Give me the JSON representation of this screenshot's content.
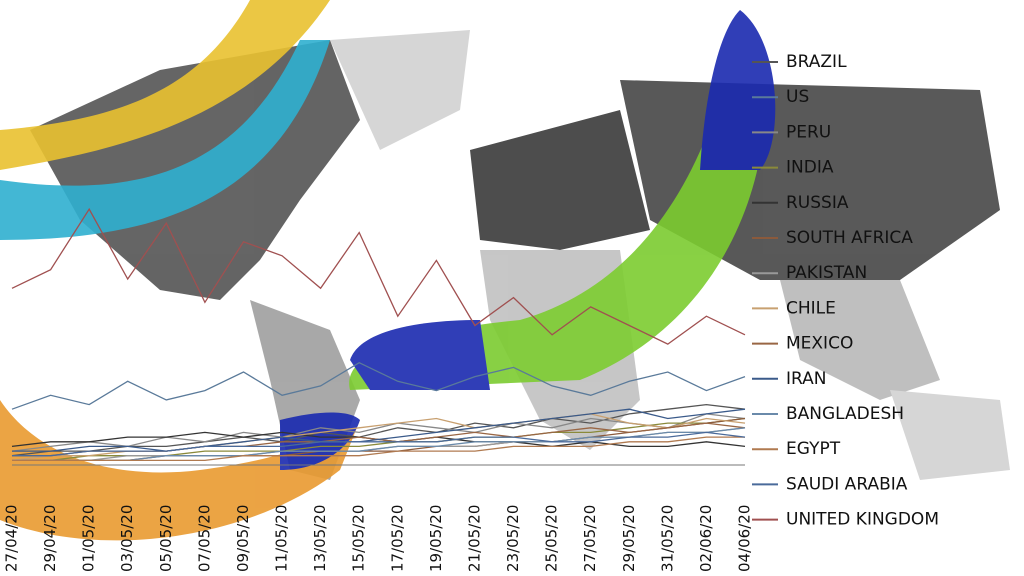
{
  "chart_data": {
    "type": "line",
    "categories": [
      "27/04/20",
      "29/04/20",
      "01/05/20",
      "03/05/20",
      "05/05/20",
      "07/05/20",
      "09/05/20",
      "11/05/20",
      "13/05/20",
      "15/05/20",
      "17/05/20",
      "19/05/20",
      "21/05/20",
      "23/05/20",
      "25/05/20",
      "27/05/20",
      "29/05/20",
      "31/05/20",
      "02/06/20",
      "04/06/20"
    ],
    "ylim": [
      0,
      100
    ],
    "series": [
      {
        "name": "BRAZIL",
        "color": "#555555",
        "values": [
          2,
          3,
          3,
          4,
          4,
          5,
          6,
          5,
          7,
          6,
          8,
          7,
          9,
          8,
          10,
          9,
          11,
          12,
          13,
          12
        ]
      },
      {
        "name": "US",
        "color": "#5a7a9a",
        "values": [
          12,
          15,
          13,
          18,
          14,
          16,
          20,
          15,
          17,
          22,
          18,
          16,
          19,
          21,
          17,
          15,
          18,
          20,
          16,
          19
        ]
      },
      {
        "name": "PERU",
        "color": "#888888",
        "values": [
          3,
          4,
          5,
          4,
          6,
          5,
          7,
          6,
          8,
          7,
          9,
          8,
          7,
          9,
          8,
          10,
          9,
          8,
          11,
          10
        ]
      },
      {
        "name": "INDIA",
        "color": "#8a8a3a",
        "values": [
          1,
          1,
          2,
          2,
          2,
          3,
          3,
          3,
          4,
          4,
          5,
          5,
          6,
          6,
          7,
          7,
          8,
          9,
          9,
          10
        ]
      },
      {
        "name": "RUSSIA",
        "color": "#333333",
        "values": [
          4,
          5,
          5,
          6,
          6,
          7,
          6,
          7,
          6,
          6,
          5,
          6,
          5,
          5,
          4,
          5,
          4,
          4,
          5,
          4
        ]
      },
      {
        "name": "SOUTH AFRICA",
        "color": "#8b5a3c",
        "values": [
          1,
          1,
          1,
          1,
          2,
          2,
          2,
          2,
          3,
          3,
          3,
          4,
          4,
          5,
          5,
          6,
          7,
          8,
          9,
          10
        ]
      },
      {
        "name": "PAKISTAN",
        "color": "#999999",
        "values": [
          1,
          1,
          1,
          2,
          2,
          2,
          2,
          3,
          3,
          3,
          4,
          4,
          4,
          5,
          5,
          6,
          6,
          7,
          7,
          8
        ]
      },
      {
        "name": "CHILE",
        "color": "#c8a070",
        "values": [
          1,
          2,
          2,
          3,
          3,
          4,
          5,
          6,
          7,
          8,
          9,
          10,
          8,
          9,
          10,
          11,
          9,
          8,
          10,
          9
        ]
      },
      {
        "name": "MEXICO",
        "color": "#996644",
        "values": [
          2,
          2,
          3,
          3,
          3,
          4,
          4,
          5,
          5,
          6,
          5,
          6,
          7,
          6,
          7,
          8,
          7,
          8,
          9,
          8
        ]
      },
      {
        "name": "IRAN",
        "color": "#3a5a8a",
        "values": [
          3,
          3,
          4,
          4,
          3,
          4,
          5,
          6,
          5,
          5,
          6,
          7,
          8,
          9,
          10,
          11,
          12,
          10,
          11,
          12
        ]
      },
      {
        "name": "BANGLADESH",
        "color": "#6a8aaa",
        "values": [
          1,
          1,
          1,
          1,
          2,
          2,
          2,
          3,
          3,
          3,
          4,
          4,
          5,
          5,
          5,
          6,
          6,
          7,
          7,
          8
        ]
      },
      {
        "name": "EGYPT",
        "color": "#b07a50",
        "values": [
          1,
          1,
          1,
          1,
          1,
          1,
          2,
          2,
          2,
          2,
          3,
          3,
          3,
          4,
          4,
          4,
          5,
          5,
          6,
          6
        ]
      },
      {
        "name": "SAUDI ARABIA",
        "color": "#4a6a9a",
        "values": [
          2,
          2,
          3,
          3,
          3,
          4,
          4,
          4,
          5,
          5,
          5,
          5,
          6,
          6,
          5,
          5,
          6,
          6,
          7,
          6
        ]
      },
      {
        "name": "UNITED KINGDOM",
        "color": "#a05050",
        "values": [
          38,
          42,
          55,
          40,
          52,
          35,
          48,
          45,
          38,
          50,
          32,
          44,
          30,
          36,
          28,
          34,
          30,
          26,
          32,
          28
        ]
      }
    ]
  }
}
